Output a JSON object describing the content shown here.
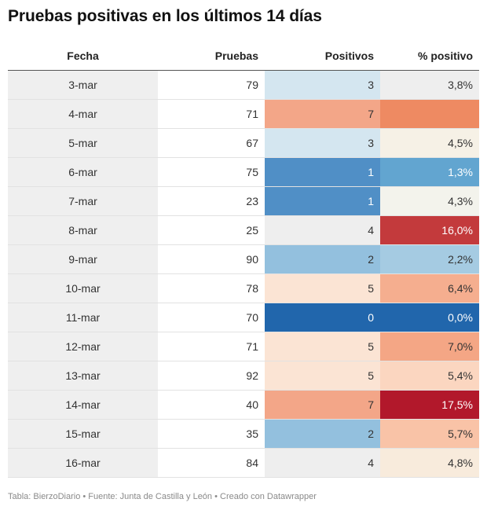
{
  "title": "Pruebas positivas en los últimos 14 días",
  "footer": "Tabla: BierzoDiario • Fuente: Junta de Castilla y León • Creado con Datawrapper",
  "chart_data": {
    "type": "table",
    "columns": [
      "Fecha",
      "Pruebas",
      "Positivos",
      "% positivo"
    ],
    "rows": [
      {
        "fecha": "3-mar",
        "pruebas": "79",
        "positivos": "3",
        "pct": "3,8%",
        "pos_color": "#d4e6f0",
        "pos_text": "#333333",
        "pct_color": "#eeeeee",
        "pct_text": "#333333"
      },
      {
        "fecha": "4-mar",
        "pruebas": "71",
        "positivos": "7",
        "pos_color": "#f3a688",
        "pos_text": "#333333",
        "pct_color": "#ee8a62",
        "pct_text": "#ffffff"
      },
      {
        "fecha": "5-mar",
        "pruebas": "67",
        "positivos": "3",
        "pos_color": "#d4e6f0",
        "pos_text": "#333333",
        "pct": "4,5%",
        "pct_color": "#f6f1e6",
        "pct_text": "#333333"
      },
      {
        "fecha": "6-mar",
        "pruebas": "75",
        "positivos": "1",
        "pos_color": "#508fc6",
        "pos_text": "#ffffff",
        "pct": "1,3%",
        "pct_color": "#62a5d0",
        "pct_text": "#ffffff"
      },
      {
        "fecha": "7-mar",
        "pruebas": "23",
        "positivos": "1",
        "pos_color": "#508fc6",
        "pos_text": "#ffffff",
        "pct": "4,3%",
        "pct_color": "#f3f3ec",
        "pct_text": "#333333"
      },
      {
        "fecha": "8-mar",
        "pruebas": "25",
        "positivos": "4",
        "pos_color": "#eeeeee",
        "pos_text": "#333333",
        "pct": "16,0%",
        "pct_color": "#c33a3c",
        "pct_text": "#ffffff"
      },
      {
        "fecha": "9-mar",
        "pruebas": "90",
        "positivos": "2",
        "pos_color": "#93c0de",
        "pos_text": "#333333",
        "pct": "2,2%",
        "pct_color": "#a5cbe2",
        "pct_text": "#333333"
      },
      {
        "fecha": "10-mar",
        "pruebas": "78",
        "positivos": "5",
        "pos_color": "#fbe4d4",
        "pos_text": "#333333",
        "pct": "6,4%",
        "pct_color": "#f5ae8f",
        "pct_text": "#333333"
      },
      {
        "fecha": "11-mar",
        "pruebas": "70",
        "positivos": "0",
        "pos_color": "#2166ac",
        "pos_text": "#ffffff",
        "pct": "0,0%",
        "pct_color": "#2166ac",
        "pct_text": "#ffffff"
      },
      {
        "fecha": "12-mar",
        "pruebas": "71",
        "positivos": "5",
        "pos_color": "#fbe4d4",
        "pos_text": "#333333",
        "pct": "7,0%",
        "pct_color": "#f4a685",
        "pct_text": "#333333"
      },
      {
        "fecha": "13-mar",
        "pruebas": "92",
        "positivos": "5",
        "pos_color": "#fbe4d4",
        "pos_text": "#333333",
        "pct": "5,4%",
        "pct_color": "#fbd6c0",
        "pct_text": "#333333"
      },
      {
        "fecha": "14-mar",
        "pruebas": "40",
        "positivos": "7",
        "pos_color": "#f3a688",
        "pos_text": "#333333",
        "pct": "17,5%",
        "pct_color": "#b2182b",
        "pct_text": "#ffffff"
      },
      {
        "fecha": "15-mar",
        "pruebas": "35",
        "positivos": "2",
        "pos_color": "#93c0de",
        "pos_text": "#333333",
        "pct": "5,7%",
        "pct_color": "#f9c3a7",
        "pct_text": "#333333"
      },
      {
        "fecha": "16-mar",
        "pruebas": "84",
        "positivos": "4",
        "pos_color": "#eeeeee",
        "pos_text": "#333333",
        "pct": "4,8%",
        "pct_color": "#f8ebdc",
        "pct_text": "#333333"
      }
    ]
  }
}
